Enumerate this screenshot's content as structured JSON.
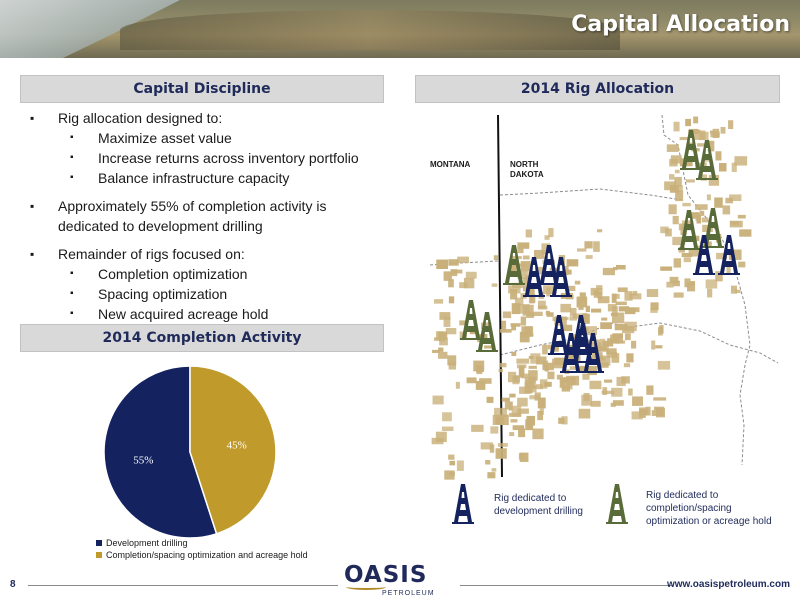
{
  "header": {
    "title": "Capital Allocation"
  },
  "capital_discipline": {
    "heading": "Capital Discipline",
    "bullets": [
      {
        "text": "Rig allocation designed to:",
        "sub": [
          "Maximize asset value",
          "Increase returns across inventory portfolio",
          "Balance infrastructure capacity"
        ]
      },
      {
        "text": "Approximately 55% of completion activity is dedicated to development drilling",
        "sub": []
      },
      {
        "text": "Remainder of rigs focused on:",
        "sub": [
          "Completion optimization",
          "Spacing optimization",
          "New acquired acreage hold"
        ]
      }
    ]
  },
  "completion_activity": {
    "heading": "2014 Completion Activity"
  },
  "chart_data": {
    "type": "pie",
    "categories": [
      "Development drilling",
      "Completion/spacing optimization and acreage hold"
    ],
    "values": [
      55,
      45
    ],
    "labels": [
      "55%",
      "45%"
    ],
    "colors": [
      "#14235f",
      "#c09a2a"
    ],
    "legend": "bottom"
  },
  "rig_allocation": {
    "heading": "2014 Rig Allocation",
    "label_montana": "MONTANA",
    "label_north_dakota": "NORTH DAKOTA",
    "legend_development": "Rig dedicated to development drilling",
    "legend_completion": "Rig dedicated to completion/spacing optimization or acreage hold",
    "colors": {
      "development_rig": "#14235f",
      "completion_rig": "#5a6b3a",
      "acreage": "#c9b07a"
    }
  },
  "footer": {
    "page_number": "8",
    "website": "www.oasispetroleum.com",
    "logo_word": "OASIS",
    "logo_sub": "PETROLEUM"
  }
}
